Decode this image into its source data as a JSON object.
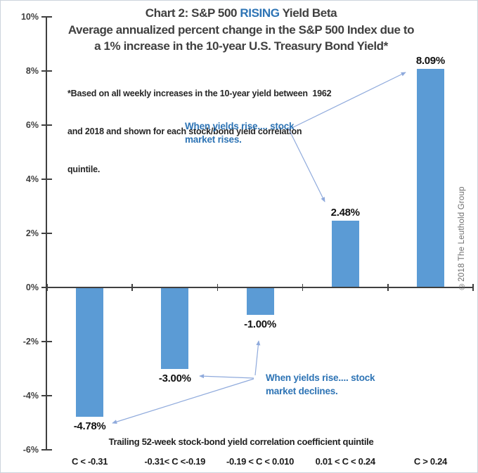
{
  "title": {
    "prefix": "Chart 2: S&P 500 ",
    "highlight": "RISING",
    "suffix": " Yield Beta"
  },
  "subtitle_lines": [
    "Average annualized percent change in the S&P 500 Index due to",
    "a 1% increase in the 10-year U.S. Treasury Bond Yield*"
  ],
  "footnote_lines": [
    "*Based on all weekly increases in the 10-year yield between  1962",
    "and 2018 and shown for each stock/bond yield correlation",
    "quintile."
  ],
  "annotations": {
    "rises": {
      "line1": "When yields rise.... stock",
      "line2": "market rises."
    },
    "declines": {
      "line1": "When yields rise.... stock",
      "line2": "market declines."
    }
  },
  "copyright": "©2018 The Leuthold Group",
  "chart_data": {
    "type": "bar",
    "categories": [
      "C < -0.31",
      "-0.31< C <-0.19",
      "-0.19 < C < 0.010",
      "0.01 < C < 0.24",
      "C > 0.24"
    ],
    "values": [
      -4.78,
      -3.0,
      -1.0,
      2.48,
      8.09
    ],
    "data_labels": [
      "-4.78%",
      "-3.00%",
      "-1.00%",
      "2.48%",
      "8.09%"
    ],
    "title": "Chart 2: S&P 500 RISING Yield Beta",
    "xlabel": "Trailing 52-week stock-bond yield correlation coefficient quintile",
    "ylabel": "",
    "ylim": [
      -6,
      10
    ],
    "y_ticks": [
      "10%",
      "8%",
      "6%",
      "4%",
      "2%",
      "0%",
      "-2%",
      "-4%",
      "-6%"
    ],
    "grid": "off",
    "legend": "none",
    "bar_color": "#5B9BD5",
    "axis_color": "#3f3f3f",
    "annotation_arrow_color": "#8FAADC"
  }
}
